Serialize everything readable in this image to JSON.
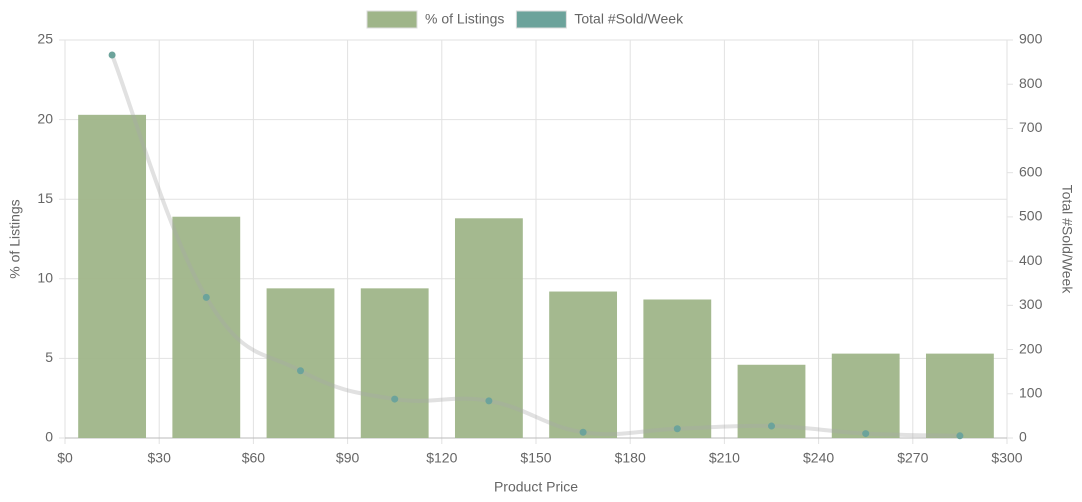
{
  "chart_data": {
    "type": "bar",
    "x_label": "Product Price",
    "y_label": "% of Listings",
    "y2_label": "Total #Sold/Week",
    "x": [
      15,
      45,
      75,
      105,
      135,
      165,
      195,
      225,
      255,
      285
    ],
    "xlim": [
      0,
      300
    ],
    "xticks": [
      {
        "value": 0,
        "label": "$0"
      },
      {
        "value": 30,
        "label": "$30"
      },
      {
        "value": 60,
        "label": "$60"
      },
      {
        "value": 90,
        "label": "$90"
      },
      {
        "value": 120,
        "label": "$120"
      },
      {
        "value": 150,
        "label": "$150"
      },
      {
        "value": 180,
        "label": "$180"
      },
      {
        "value": 210,
        "label": "$210"
      },
      {
        "value": 240,
        "label": "$240"
      },
      {
        "value": 270,
        "label": "$270"
      },
      {
        "value": 300,
        "label": "$300"
      }
    ],
    "ylim": [
      0,
      25
    ],
    "yticks": [
      0,
      5,
      10,
      15,
      20,
      25
    ],
    "y2lim": [
      0,
      900
    ],
    "y2ticks": [
      0,
      100,
      200,
      300,
      400,
      500,
      600,
      700,
      800,
      900
    ],
    "grid": true,
    "legend": "top",
    "series": [
      {
        "name": "% of Listings",
        "type": "bar",
        "color": "#9fb589",
        "values": [
          20.3,
          13.9,
          9.4,
          9.4,
          13.8,
          9.2,
          8.7,
          4.6,
          5.3,
          5.3
        ]
      },
      {
        "name": "Total #Sold/Week",
        "type": "line",
        "axis": "y2",
        "color": "#6ca39b",
        "values": [
          866,
          318,
          152,
          88,
          84,
          13,
          21,
          27,
          10,
          5
        ]
      }
    ]
  }
}
